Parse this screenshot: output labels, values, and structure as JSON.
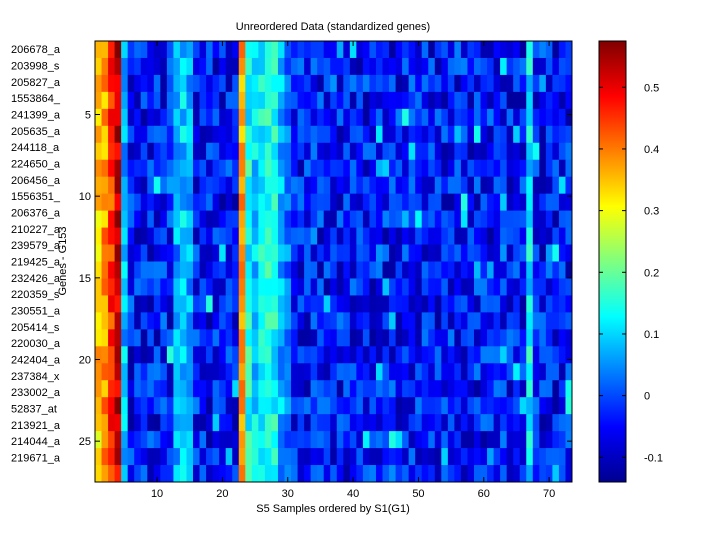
{
  "chart_data": {
    "type": "heatmap",
    "title": "Unreordered Data (standardized genes)",
    "xlabel": "S5 Samples ordered by S1(G1)",
    "ylabel": "Genes - G153",
    "xlim": [
      0.5,
      73.5
    ],
    "ylim": [
      0.5,
      27.5
    ],
    "n_columns": 73,
    "x_ticks": [
      10,
      20,
      30,
      40,
      50,
      60,
      70
    ],
    "y_ticks": [
      5,
      10,
      15,
      20,
      25
    ],
    "row_labels": [
      "206678_a",
      "203998_s",
      "205827_a",
      "1553864_",
      "241399_a",
      "205635_a",
      "244118_a",
      "224650_a",
      "206456_a",
      "1556351_",
      "206376_a",
      "210227_a",
      "239579_a",
      "219425_a",
      "232426_a",
      "220359_s",
      "230551_a",
      "205414_s",
      "220030_a",
      "242404_a",
      "237384_x",
      "233002_a",
      "52837_at",
      "213921_a",
      "214044_a",
      "219671_a"
    ],
    "colorbar": {
      "colormap": "jet",
      "clim": [
        -0.14,
        0.575
      ],
      "ticks": [
        -0.1,
        0,
        0.1,
        0.2,
        0.3,
        0.4,
        0.5
      ],
      "tick_labels": [
        "-0.1",
        "0",
        "0.1",
        "0.2",
        "0.3",
        "0.4",
        "0.5"
      ]
    },
    "column_profile": {
      "columns": [
        1,
        2,
        3,
        4,
        5,
        13,
        14,
        15,
        23,
        24,
        25,
        26,
        27,
        28,
        29,
        30,
        67
      ],
      "approx_values": [
        0.34,
        0.38,
        0.45,
        0.52,
        0.08,
        0.06,
        0.09,
        0.07,
        0.36,
        0.14,
        0.1,
        0.12,
        0.16,
        0.13,
        0.07,
        0.03,
        0.12
      ]
    },
    "background_range": [
      -0.12,
      0.04
    ]
  }
}
